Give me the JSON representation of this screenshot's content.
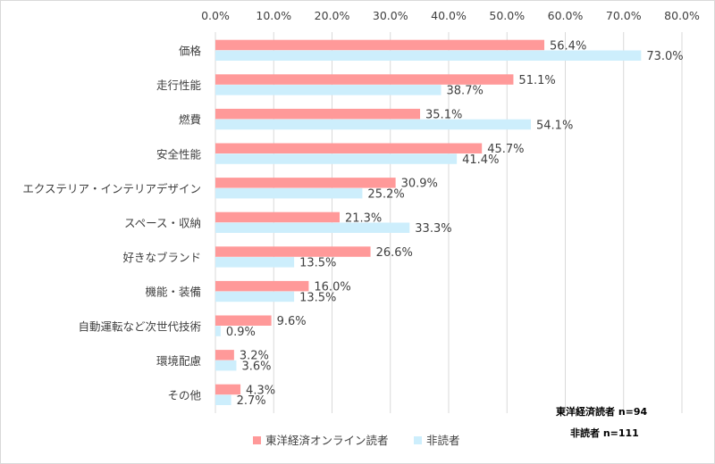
{
  "chart_data": {
    "type": "bar",
    "orientation": "horizontal",
    "categories": [
      "価格",
      "走行性能",
      "燃費",
      "安全性能",
      "エクステリア・インテリアデザイン",
      "スペース・収納",
      "好きなブランド",
      "機能・装備",
      "自動運転など次世代技術",
      "環境配慮",
      "その他"
    ],
    "series": [
      {
        "name": "東洋経済オンライン読者",
        "color": "#ff9999",
        "values": [
          56.4,
          51.1,
          35.1,
          45.7,
          30.9,
          21.3,
          26.6,
          16.0,
          9.6,
          3.2,
          4.3
        ],
        "labels": [
          "56.4%",
          "51.1%",
          "35.1%",
          "45.7%",
          "30.9%",
          "21.3%",
          "26.6%",
          "16.0%",
          "9.6%",
          "3.2%",
          "4.3%"
        ]
      },
      {
        "name": "非読者",
        "color": "#cdeefc",
        "values": [
          73.0,
          38.7,
          54.1,
          41.4,
          25.2,
          33.3,
          13.5,
          13.5,
          0.9,
          3.6,
          2.7
        ],
        "labels": [
          "73.0%",
          "38.7%",
          "54.1%",
          "41.4%",
          "25.2%",
          "33.3%",
          "13.5%",
          "13.5%",
          "0.9%",
          "3.6%",
          "2.7%"
        ]
      }
    ],
    "xlim": [
      0,
      80
    ],
    "xticks": [
      0,
      10,
      20,
      30,
      40,
      50,
      60,
      70,
      80
    ],
    "xtick_labels": [
      "0.0%",
      "10.0%",
      "20.0%",
      "30.0%",
      "40.0%",
      "50.0%",
      "60.0%",
      "70.0%",
      "80.0%"
    ],
    "x_axis_position": "top",
    "grid": "vertical",
    "legend_position": "bottom",
    "gridline_color": "#d9d9d9"
  },
  "notes": {
    "readers": "東洋経済読者 n=94",
    "nonreaders": "非読者 n=111"
  }
}
